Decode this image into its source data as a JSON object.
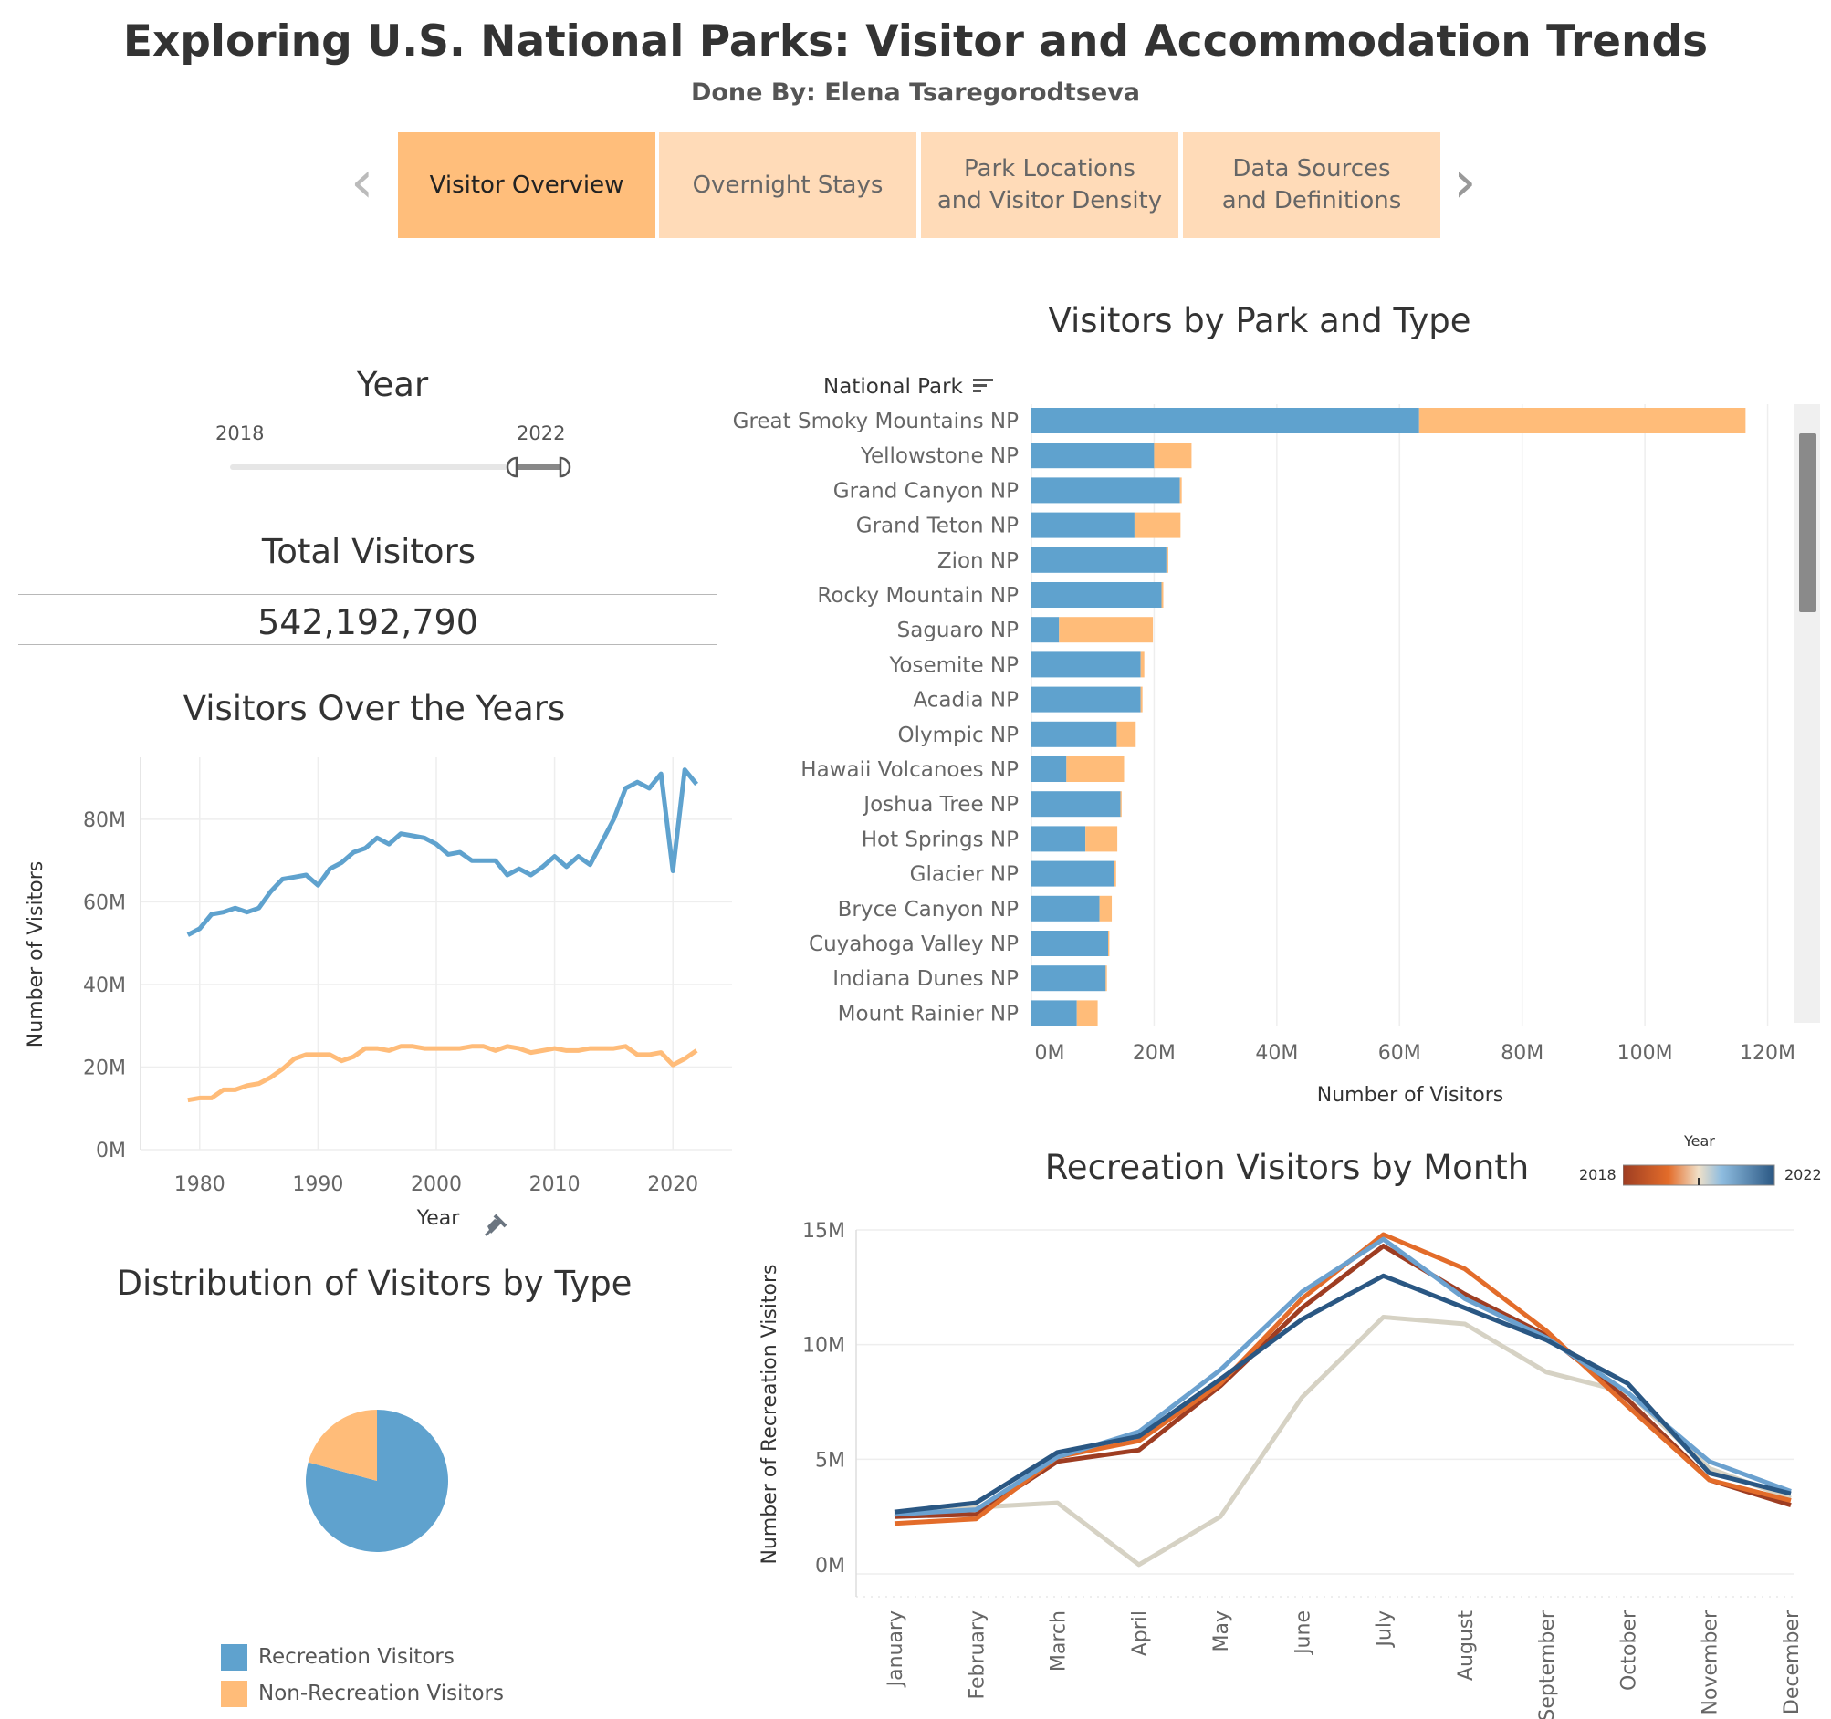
{
  "header": {
    "title": "Exploring U.S. National Parks: Visitor and Accommodation Trends",
    "subtitle": "Done By: Elena Tsaregorodtseva"
  },
  "tabs": [
    {
      "label": "Visitor Overview",
      "active": true
    },
    {
      "label": "Overnight Stays",
      "active": false
    },
    {
      "label": "Park Locations\nand Visitor Density",
      "active": false
    },
    {
      "label": "Data Sources\nand Definitions",
      "active": false
    }
  ],
  "year_filter": {
    "title": "Year",
    "min_label": "2018",
    "max_label": "2022"
  },
  "total_visitors": {
    "title": "Total Visitors",
    "value": "542,192,790"
  },
  "colors": {
    "recreation": "#5fa2ce",
    "non_recreation": "#ffbc79",
    "grid": "#eeeeee",
    "axis_text": "#666666"
  },
  "chart_data": [
    {
      "id": "visitors_over_years",
      "type": "line",
      "title": "Visitors Over the Years",
      "xlabel": "Year",
      "ylabel": "Number of Visitors",
      "x_ticks": [
        1980,
        1990,
        2000,
        2010,
        2020
      ],
      "y_ticks": [
        "0M",
        "20M",
        "40M",
        "60M",
        "80M"
      ],
      "y_tick_values": [
        0,
        20,
        40,
        60,
        80
      ],
      "xlim": [
        1975,
        2025
      ],
      "ylim": [
        0,
        95
      ],
      "x": [
        1979,
        1980,
        1981,
        1982,
        1983,
        1984,
        1985,
        1986,
        1987,
        1988,
        1989,
        1990,
        1991,
        1992,
        1993,
        1994,
        1995,
        1996,
        1997,
        1998,
        1999,
        2000,
        2001,
        2002,
        2003,
        2004,
        2005,
        2006,
        2007,
        2008,
        2009,
        2010,
        2011,
        2012,
        2013,
        2014,
        2015,
        2016,
        2017,
        2018,
        2019,
        2020,
        2021,
        2022
      ],
      "series": [
        {
          "key": "recreation",
          "values": [
            52,
            53.5,
            57,
            57.5,
            58.5,
            57.5,
            58.5,
            62.5,
            65.5,
            66,
            66.5,
            64,
            68,
            69.5,
            72,
            73,
            75.5,
            74,
            76.5,
            76,
            75.5,
            74,
            71.5,
            72,
            70,
            70,
            70,
            66.5,
            68,
            66.5,
            68.5,
            71,
            68.5,
            71,
            69,
            74.5,
            80,
            87.5,
            89,
            87.5,
            91,
            67.5,
            92,
            88.5
          ]
        },
        {
          "key": "non_recreation",
          "values": [
            12,
            12.5,
            12.5,
            14.5,
            14.5,
            15.5,
            16,
            17.5,
            19.5,
            22,
            23,
            23,
            23,
            21.5,
            22.5,
            24.5,
            24.5,
            24,
            25,
            25,
            24.5,
            24.5,
            24.5,
            24.5,
            25,
            25,
            24,
            25,
            24.5,
            23.5,
            24,
            24.5,
            24,
            24,
            24.5,
            24.5,
            24.5,
            25,
            23,
            23,
            23.5,
            20.5,
            22,
            24
          ]
        }
      ]
    },
    {
      "id": "visitors_by_park",
      "type": "bar",
      "title": "Visitors by Park and Type",
      "ylabel": "National Park",
      "xlabel": "Number of Visitors",
      "x_ticks": [
        "0M",
        "20M",
        "40M",
        "60M",
        "80M",
        "100M",
        "120M"
      ],
      "x_tick_values": [
        0,
        20,
        40,
        60,
        80,
        100,
        120
      ],
      "xlim": [
        0,
        122
      ],
      "categories": [
        "Great Smoky Mountains NP",
        "Yellowstone NP",
        "Grand Canyon NP",
        "Grand Teton NP",
        "Zion NP",
        "Rocky Mountain NP",
        "Saguaro NP",
        "Yosemite NP",
        "Acadia NP",
        "Olympic NP",
        "Hawaii Volcanoes NP",
        "Joshua Tree NP",
        "Hot Springs NP",
        "Glacier NP",
        "Bryce Canyon NP",
        "Cuyahoga Valley NP",
        "Indiana Dunes NP",
        "Mount Rainier NP"
      ],
      "series": [
        {
          "key": "recreation",
          "values": [
            63.2,
            20,
            24.2,
            16.8,
            22,
            21.2,
            4.5,
            17.8,
            17.8,
            13.9,
            5.7,
            14.5,
            8.8,
            13.5,
            11.1,
            12.5,
            12.1,
            7.4
          ]
        },
        {
          "key": "non_recreation",
          "values": [
            53.2,
            6.1,
            0.3,
            7.5,
            0.3,
            0.3,
            15.3,
            0.6,
            0.3,
            3.1,
            9.4,
            0.2,
            5.2,
            0.3,
            2.0,
            0.2,
            0.2,
            3.4
          ]
        }
      ]
    },
    {
      "id": "distribution_by_type",
      "type": "pie",
      "title": "Distribution of Visitors by Type",
      "slices": [
        {
          "key": "recreation",
          "label": "Recreation Visitors",
          "value": 79.2
        },
        {
          "key": "non_recreation",
          "label": "Non-Recreation Visitors",
          "value": 20.8
        }
      ],
      "legend_position": "bottom-left"
    },
    {
      "id": "recreation_by_month",
      "type": "line",
      "title": "Recreation Visitors by Month",
      "ylabel": "Number of Recreation Visitors",
      "legend_title": "Year",
      "legend_min": "2018",
      "legend_max": "2022",
      "categories": [
        "January",
        "February",
        "March",
        "April",
        "May",
        "June",
        "July",
        "August",
        "September",
        "October",
        "November",
        "December"
      ],
      "y_ticks": [
        "0M",
        "5M",
        "10M",
        "15M"
      ],
      "y_tick_values": [
        0,
        5,
        10,
        15
      ],
      "ylim": [
        0,
        15
      ],
      "series": [
        {
          "year": "2020",
          "color": "#d6d2c4",
          "values": [
            2.5,
            2.9,
            3.1,
            0.4,
            2.5,
            7.7,
            11.2,
            10.9,
            8.8,
            7.9,
            4.6,
            3.3
          ]
        },
        {
          "year": "2018",
          "color": "#9e3d22",
          "values": [
            2.5,
            2.6,
            4.9,
            5.4,
            8.2,
            11.6,
            14.3,
            12.2,
            10.4,
            7.6,
            4.1,
            3.0
          ]
        },
        {
          "year": "2019",
          "color": "#e36c2a",
          "values": [
            2.2,
            2.4,
            5.1,
            5.8,
            8.3,
            12.0,
            14.8,
            13.3,
            10.6,
            7.3,
            4.1,
            3.2
          ]
        },
        {
          "year": "2021",
          "color": "#6ba1cf",
          "values": [
            2.6,
            2.8,
            5.1,
            6.2,
            8.9,
            12.3,
            14.6,
            12.0,
            10.3,
            7.9,
            4.9,
            3.6
          ]
        },
        {
          "year": "2022",
          "color": "#2a5783",
          "values": [
            2.7,
            3.1,
            5.3,
            6.0,
            8.5,
            11.1,
            13.0,
            11.6,
            10.2,
            8.3,
            4.4,
            3.5
          ]
        }
      ]
    }
  ]
}
